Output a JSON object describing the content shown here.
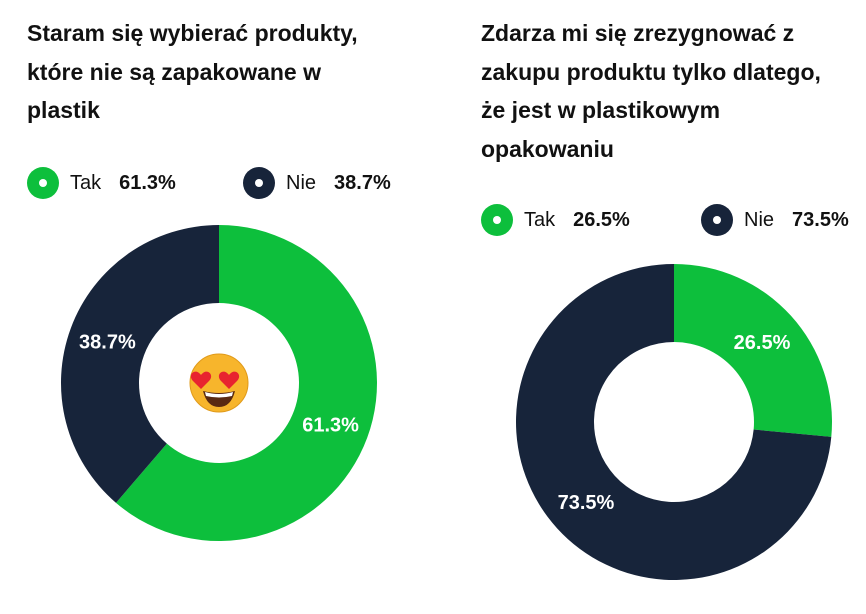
{
  "colors": {
    "tak": "#0dbf3c",
    "nie": "#17243a"
  },
  "chart_data": [
    {
      "type": "pie",
      "donut": true,
      "title": "Staram się wybierać produkty, które nie są zapakowane w plastik",
      "title_lines": [
        "Staram się wybierać produkty,",
        "które nie są zapakowane w",
        "plastik"
      ],
      "categories": [
        "Tak",
        "Nie"
      ],
      "values": [
        61.3,
        38.7
      ],
      "labels": [
        "61.3%",
        "38.7%"
      ],
      "legend": "top",
      "center_icon": "heart-eyes-emoji"
    },
    {
      "type": "pie",
      "donut": true,
      "title": "Zdarza mi się zrezygnować z zakupu produktu tylko dlatego, że jest w plastikowym opakowaniu",
      "title_lines": [
        "Zdarza mi się zrezygnować z",
        "zakupu produktu tylko dlatego,",
        "że jest w plastikowym",
        "opakowaniu"
      ],
      "categories": [
        "Tak",
        "Nie"
      ],
      "values": [
        26.5,
        73.5
      ],
      "labels": [
        "26.5%",
        "73.5%"
      ],
      "legend": "top"
    }
  ]
}
